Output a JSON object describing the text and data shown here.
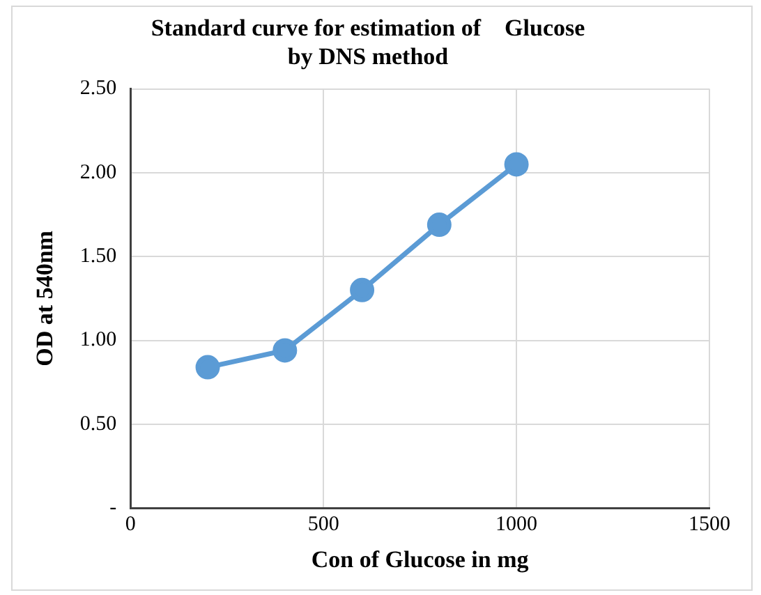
{
  "chart_data": {
    "type": "line",
    "title": [
      "Standard curve for estimation of    Glucose",
      "by DNS method"
    ],
    "xlabel": "Con of Glucose in mg",
    "ylabel": "OD at 540nm",
    "x": [
      200,
      400,
      600,
      800,
      1000
    ],
    "series": [
      {
        "color": "#5b9bd5",
        "values": [
          0.84,
          0.94,
          1.3,
          1.69,
          2.05
        ]
      }
    ],
    "xlim": [
      0,
      1500
    ],
    "xticks": [
      0,
      500,
      1000,
      1500
    ],
    "ylim": [
      0,
      2.5
    ],
    "yticks": [
      {
        "value": 0,
        "label": "-"
      },
      {
        "value": 0.5,
        "label": "0.50"
      },
      {
        "value": 1,
        "label": "1.00"
      },
      {
        "value": 1.5,
        "label": "1.50"
      },
      {
        "value": 2,
        "label": "2.00"
      },
      {
        "value": 2.5,
        "label": "2.50"
      }
    ],
    "grid": true,
    "marker": "circle",
    "line_style": "solid",
    "legend": false
  }
}
